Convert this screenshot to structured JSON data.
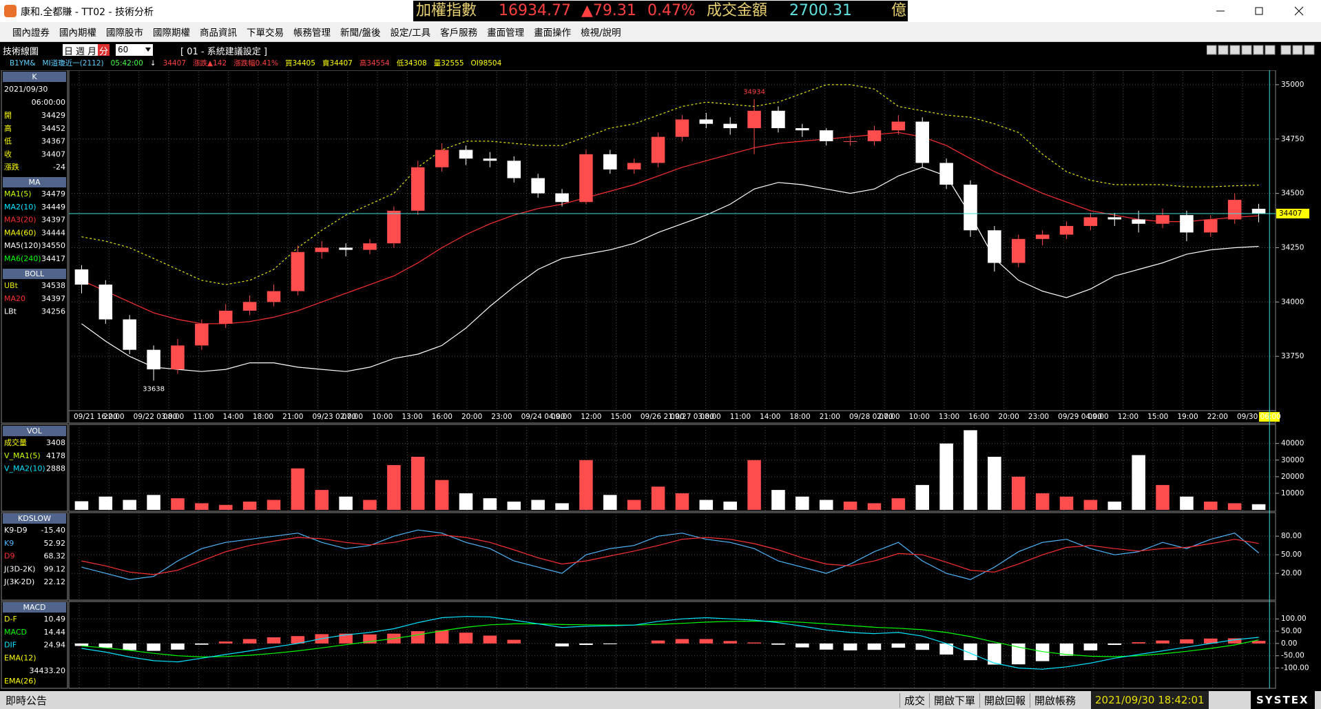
{
  "window": {
    "title": "康和.全都賺 - TT02 - 技術分析"
  },
  "ticker": {
    "name": "加權指數",
    "price": "16934.77",
    "change": "▲79.31",
    "pct": "0.47%",
    "amount_label": "成交金額",
    "amount": "2700.31",
    "unit": "億"
  },
  "menu": [
    "國內證券",
    "國內期權",
    "國際股市",
    "國際期權",
    "商品資訊",
    "下單交易",
    "帳務管理",
    "新聞/盤後",
    "設定/工具",
    "客戶服務",
    "畫面管理",
    "畫面操作",
    "檢視/說明"
  ],
  "toolbar": {
    "label": "技術線圖",
    "periods": [
      "日",
      "週",
      "月",
      "分"
    ],
    "interval": "60",
    "setting": "[ 01 - 系統建議設定 ]"
  },
  "quote": [
    "B1YM&",
    "MI道瓊近一(2112)",
    "05:42:00",
    "↓",
    "34407",
    "漲跌▲142",
    "漲跌幅0.41%",
    "買34405",
    "賣34407",
    "高34554",
    "低34308",
    "量32555",
    "OI98504"
  ],
  "chart": {
    "type": "candlestick",
    "k_panel": {
      "header": "K",
      "date": "2021/09/30",
      "time": "06:00:00",
      "ohlc_labels": [
        "開",
        "高",
        "低",
        "收"
      ],
      "change_label": "漲跌",
      "change": -24
    },
    "ma_panel": {
      "header": "MA",
      "items": [
        {
          "name": "MA1(5)",
          "value": 34479,
          "color": "#c8ff00"
        },
        {
          "name": "MA2(10)",
          "value": 34449,
          "color": "#00e5ff"
        },
        {
          "name": "MA3(20)",
          "value": 34397,
          "color": "#ff3030"
        },
        {
          "name": "MA4(60)",
          "value": 34444,
          "color": "#ffff00"
        },
        {
          "name": "MA5(120)",
          "value": 34550,
          "color": "#ffffff"
        },
        {
          "name": "MA6(240)",
          "value": 34417,
          "color": "#00ff00"
        }
      ]
    },
    "boll_panel": {
      "header": "BOLL",
      "names": [
        "UBt",
        "MA20",
        "LBt"
      ]
    },
    "candles": [
      [
        34150,
        34170,
        34040,
        34080
      ],
      [
        34080,
        34100,
        33900,
        33920
      ],
      [
        33920,
        33940,
        33760,
        33780
      ],
      [
        33780,
        33800,
        33638,
        33690
      ],
      [
        33690,
        33830,
        33670,
        33800
      ],
      [
        33800,
        33920,
        33780,
        33900
      ],
      [
        33900,
        33990,
        33880,
        33960
      ],
      [
        33960,
        34030,
        33940,
        34000
      ],
      [
        34000,
        34080,
        33980,
        34050
      ],
      [
        34050,
        34260,
        34030,
        34230
      ],
      [
        34230,
        34280,
        34200,
        34250
      ],
      [
        34250,
        34270,
        34210,
        34240
      ],
      [
        34240,
        34290,
        34220,
        34270
      ],
      [
        34270,
        34440,
        34250,
        34420
      ],
      [
        34420,
        34650,
        34400,
        34620
      ],
      [
        34620,
        34730,
        34600,
        34700
      ],
      [
        34700,
        34720,
        34630,
        34660
      ],
      [
        34660,
        34690,
        34620,
        34650
      ],
      [
        34650,
        34670,
        34550,
        34570
      ],
      [
        34570,
        34590,
        34480,
        34500
      ],
      [
        34500,
        34520,
        34440,
        34460
      ],
      [
        34460,
        34700,
        34450,
        34680
      ],
      [
        34680,
        34700,
        34590,
        34610
      ],
      [
        34610,
        34660,
        34590,
        34640
      ],
      [
        34640,
        34780,
        34620,
        34760
      ],
      [
        34760,
        34860,
        34740,
        34840
      ],
      [
        34840,
        34870,
        34800,
        34820
      ],
      [
        34820,
        34850,
        34770,
        34800
      ],
      [
        34800,
        34934,
        34680,
        34880
      ],
      [
        34880,
        34900,
        34780,
        34800
      ],
      [
        34800,
        34820,
        34760,
        34790
      ],
      [
        34790,
        34800,
        34720,
        34740
      ],
      [
        34740,
        34770,
        34720,
        34740
      ],
      [
        34740,
        34810,
        34720,
        34790
      ],
      [
        34790,
        34860,
        34770,
        34830
      ],
      [
        34830,
        34850,
        34620,
        34640
      ],
      [
        34640,
        34660,
        34520,
        34540
      ],
      [
        34540,
        34560,
        34300,
        34330
      ],
      [
        34330,
        34350,
        34140,
        34180
      ],
      [
        34180,
        34310,
        34160,
        34290
      ],
      [
        34290,
        34330,
        34260,
        34310
      ],
      [
        34310,
        34370,
        34290,
        34350
      ],
      [
        34350,
        34410,
        34330,
        34390
      ],
      [
        34390,
        34410,
        34350,
        34380
      ],
      [
        34380,
        34420,
        34320,
        34360
      ],
      [
        34360,
        34430,
        34340,
        34400
      ],
      [
        34400,
        34420,
        34280,
        34320
      ],
      [
        34320,
        34400,
        34300,
        34380
      ],
      [
        34380,
        34500,
        34360,
        34470
      ],
      [
        34429,
        34452,
        34367,
        34407
      ]
    ],
    "up_color": "#ff4c4c",
    "down_color": "#ffffff",
    "ylim": [
      33500,
      35060
    ],
    "yticks": [
      33750,
      34000,
      34250,
      34500,
      34750,
      35000
    ],
    "grid": true,
    "time_labels": [
      "09/21 16:00",
      "22:00",
      "09/22 03:00",
      "08:00",
      "11:00",
      "14:00",
      "18:00",
      "21:00",
      "09/23 02:00",
      "07:00",
      "10:00",
      "13:00",
      "16:00",
      "20:00",
      "23:00",
      "09/24 04:00",
      "09:00",
      "12:00",
      "15:00",
      "09/26 21:00",
      "09/27 03:00",
      "08:00",
      "11:00",
      "14:00",
      "18:00",
      "21:00",
      "09/28 02:00",
      "07:00",
      "10:00",
      "13:00",
      "16:00",
      "20:00",
      "23:00",
      "09/29 04:00",
      "09:00",
      "12:00",
      "15:00",
      "19:00",
      "22:00",
      "09/30 06:00"
    ],
    "boll": {
      "upper": [
        34300,
        34280,
        34250,
        34200,
        34150,
        34100,
        34080,
        34100,
        34150,
        34250,
        34330,
        34400,
        34450,
        34500,
        34620,
        34700,
        34740,
        34740,
        34730,
        34720,
        34720,
        34760,
        34800,
        34820,
        34860,
        34900,
        34920,
        34910,
        34900,
        34920,
        34960,
        35000,
        35000,
        34980,
        34900,
        34880,
        34860,
        34850,
        34820,
        34780,
        34680,
        34600,
        34560,
        34540,
        34540,
        34540,
        34530,
        34530,
        34535,
        34538
      ],
      "mid": [
        34100,
        34050,
        34000,
        33950,
        33920,
        33900,
        33900,
        33910,
        33930,
        33960,
        34000,
        34040,
        34080,
        34120,
        34180,
        34250,
        34310,
        34360,
        34400,
        34430,
        34450,
        34480,
        34510,
        34540,
        34580,
        34620,
        34650,
        34680,
        34710,
        34730,
        34740,
        34750,
        34760,
        34770,
        34780,
        34760,
        34720,
        34660,
        34600,
        34550,
        34500,
        34460,
        34420,
        34400,
        34380,
        34370,
        34370,
        34380,
        34390,
        34397
      ],
      "lower": [
        33900,
        33820,
        33750,
        33700,
        33690,
        33680,
        33690,
        33720,
        33720,
        33700,
        33690,
        33680,
        33700,
        33740,
        33760,
        33800,
        33880,
        33980,
        34070,
        34150,
        34200,
        34220,
        34240,
        34270,
        34320,
        34360,
        34400,
        34450,
        34520,
        34550,
        34540,
        34520,
        34500,
        34520,
        34580,
        34620,
        34580,
        34400,
        34200,
        34100,
        34050,
        34020,
        34060,
        34120,
        34150,
        34180,
        34220,
        34240,
        34250,
        34256
      ],
      "colors": [
        "#e8e800",
        "#ff3030",
        "#ffffff"
      ]
    },
    "volume": {
      "header": "VOL",
      "names": [
        "成交量",
        "V_MA1(5)",
        "V_MA2(10)"
      ],
      "ma_values": [
        4178,
        2888
      ],
      "values": [
        5200,
        8000,
        6000,
        9000,
        7000,
        4000,
        3000,
        5000,
        6000,
        25000,
        12000,
        8000,
        6000,
        27000,
        32000,
        18000,
        10000,
        7000,
        5000,
        6000,
        4000,
        30000,
        9000,
        6000,
        14000,
        10000,
        6000,
        5000,
        30000,
        12000,
        8000,
        6000,
        5000,
        4000,
        7000,
        15000,
        40000,
        48000,
        32000,
        20000,
        10000,
        8000,
        6000,
        5000,
        33000,
        15000,
        8000,
        5000,
        4000,
        3408
      ],
      "ylim": [
        0,
        49000
      ],
      "yticks": [
        10000,
        20000,
        30000,
        40000
      ]
    },
    "kd": {
      "header": "KDSLOW",
      "names": [
        "K9-D9",
        "K9",
        "D9",
        "J(3D-2K)",
        "J(3K-2D)"
      ],
      "diff": "-15.40",
      "j": [
        "99.12",
        "22.12"
      ],
      "k": [
        30,
        20,
        10,
        15,
        40,
        60,
        70,
        75,
        80,
        85,
        70,
        60,
        65,
        80,
        90,
        85,
        70,
        60,
        40,
        30,
        20,
        50,
        60,
        65,
        80,
        85,
        75,
        70,
        60,
        40,
        30,
        20,
        35,
        55,
        70,
        40,
        20,
        10,
        30,
        55,
        70,
        75,
        60,
        50,
        55,
        70,
        60,
        75,
        85,
        52.92
      ],
      "d": [
        40,
        32,
        22,
        18,
        25,
        40,
        55,
        65,
        72,
        78,
        76,
        70,
        66,
        70,
        78,
        82,
        78,
        70,
        58,
        45,
        35,
        40,
        48,
        56,
        65,
        75,
        78,
        75,
        68,
        58,
        45,
        35,
        32,
        40,
        52,
        50,
        38,
        25,
        22,
        35,
        50,
        62,
        65,
        60,
        56,
        60,
        62,
        68,
        75,
        68.32
      ],
      "colors": [
        "#4fb8ff",
        "#ff3030"
      ],
      "ylim": [
        -21,
        118
      ],
      "yticks": [
        {
          "value": 20,
          "label": "20.00"
        },
        {
          "value": 50,
          "label": "50.00"
        },
        {
          "value": 80,
          "label": "80.00"
        }
      ]
    },
    "macd": {
      "header": "MACD",
      "names": [
        "D-F",
        "MACD",
        "DIF",
        "EMA(12)",
        "EMA(26)"
      ],
      "ema12": "34433.20",
      "df": [
        -10,
        -17,
        -27,
        -30,
        -25,
        -5,
        8,
        18,
        25,
        30,
        38,
        40,
        37,
        40,
        50,
        53,
        44,
        32,
        15,
        0,
        -12,
        -6,
        -3,
        0,
        12,
        18,
        18,
        10,
        4,
        -5,
        -16,
        -25,
        -28,
        -26,
        -17,
        -26,
        -45,
        -68,
        -86,
        -85,
        -72,
        -50,
        -28,
        -6,
        5,
        12,
        17,
        20,
        21,
        10.49
      ],
      "macd": [
        -10,
        -18,
        -28,
        -40,
        -50,
        -55,
        -53,
        -48,
        -40,
        -30,
        -18,
        -5,
        8,
        20,
        35,
        52,
        66,
        76,
        80,
        80,
        77,
        76,
        75,
        75,
        78,
        82,
        87,
        90,
        91,
        90,
        86,
        80,
        73,
        66,
        62,
        56,
        45,
        28,
        6,
        -15,
        -33,
        -45,
        -52,
        -54,
        -50,
        -42,
        -32,
        -20,
        -6,
        14.44
      ],
      "dif": [
        -20,
        -35,
        -55,
        -70,
        -75,
        -60,
        -45,
        -30,
        -15,
        0,
        20,
        35,
        45,
        60,
        85,
        105,
        110,
        108,
        95,
        80,
        65,
        70,
        72,
        75,
        90,
        100,
        105,
        100,
        95,
        85,
        70,
        55,
        45,
        40,
        45,
        30,
        0,
        -40,
        -80,
        -100,
        -105,
        -95,
        -80,
        -60,
        -45,
        -30,
        -15,
        0,
        15,
        24.94
      ],
      "colors": [
        "#00ff00",
        "#00e5ff"
      ],
      "ylim": [
        -177,
        168
      ],
      "yticks": [
        {
          "value": -100,
          "label": "-100.00"
        },
        {
          "value": -50,
          "label": "-50.00"
        },
        {
          "value": 0,
          "label": "0.00"
        },
        {
          "value": 50,
          "label": "50.00"
        },
        {
          "value": 100,
          "label": "100.00"
        }
      ]
    }
  },
  "status": {
    "notice": "即時公告",
    "items": [
      "成交",
      "開啟下單",
      "開啟回報",
      "開啟帳務"
    ],
    "datetime": "2021/09/30 18:42:01",
    "brand": "SYSTEX"
  }
}
